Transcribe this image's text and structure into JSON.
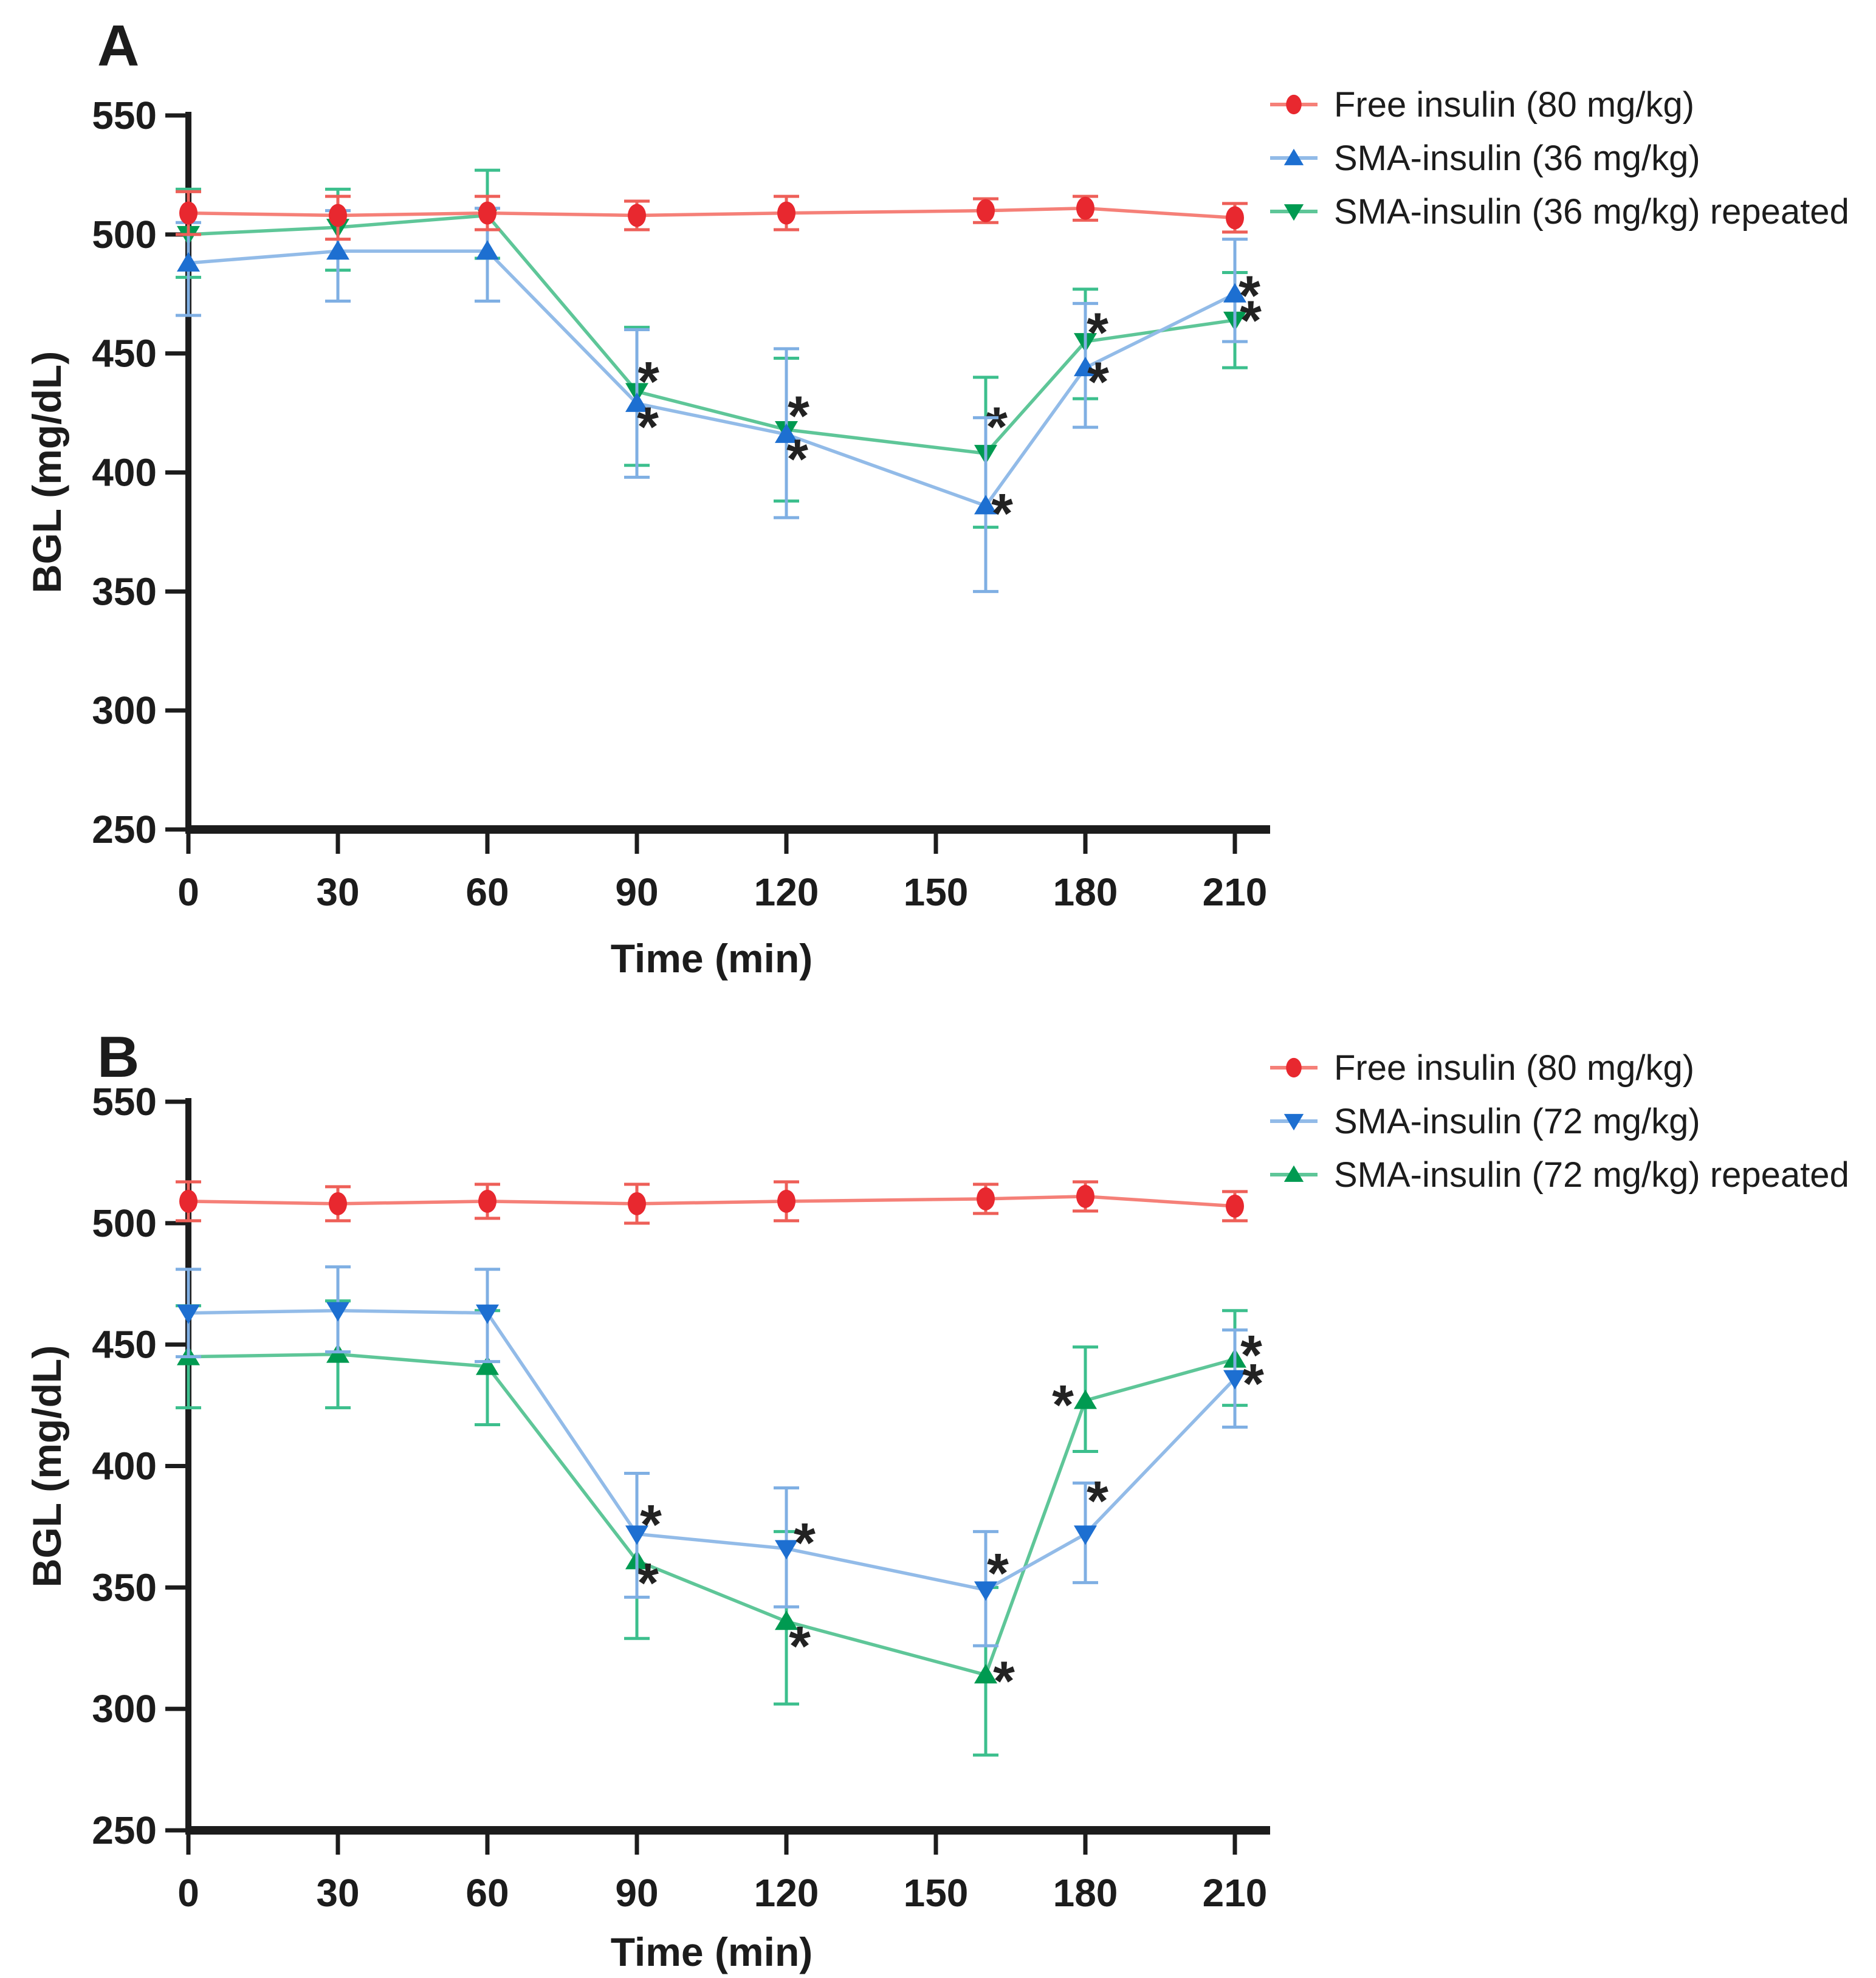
{
  "figure": {
    "background": "#ffffff",
    "axis_color": "#1c1c1c",
    "sig_symbol": "*"
  },
  "chart_data": [
    {
      "type": "line",
      "panel_label": "A",
      "xlabel": "Time (min)",
      "ylabel": "BGL (mg/dL)",
      "xlim": [
        0,
        218
      ],
      "ylim": [
        250,
        550
      ],
      "x_ticks": [
        0,
        30,
        60,
        90,
        120,
        150,
        180,
        210
      ],
      "y_ticks": [
        550,
        500,
        450,
        400,
        350,
        300,
        250
      ],
      "grid": false,
      "legend_position": "top-right",
      "x": [
        0,
        30,
        60,
        90,
        120,
        160,
        180,
        210
      ],
      "series": [
        {
          "name": "Free insulin (80 mg/kg)",
          "marker": "circle",
          "marker_color": "#e8282f",
          "line_color": "#f58078",
          "error_color": "#ee5f58",
          "values": [
            509,
            508,
            509,
            508,
            509,
            510,
            511,
            507
          ],
          "err_up": [
            9,
            8,
            7,
            6,
            7,
            5,
            5,
            6
          ],
          "err_dn": [
            9,
            10,
            7,
            6,
            7,
            5,
            5,
            6
          ],
          "sig": []
        },
        {
          "name": "SMA-insulin (36 mg/kg)",
          "marker": "triangle-up",
          "marker_color": "#1d6fd1",
          "line_color": "#92bbe8",
          "error_color": "#7fafe3",
          "values": [
            488,
            493,
            493,
            429,
            416,
            386,
            444,
            475
          ],
          "err_up": [
            17,
            17,
            18,
            31,
            36,
            37,
            27,
            23
          ],
          "err_dn": [
            22,
            21,
            21,
            31,
            35,
            36,
            25,
            20
          ],
          "sig": [
            {
              "t": 90,
              "dx": 18,
              "dy": 28
            },
            {
              "t": 120,
              "dx": 18,
              "dy": 30
            },
            {
              "t": 160,
              "dx": 27,
              "dy": 2
            },
            {
              "t": 180,
              "dx": 21,
              "dy": 13
            },
            {
              "t": 210,
              "dx": 24,
              "dy": -8
            }
          ]
        },
        {
          "name": "SMA-insulin (36 mg/kg) repeated",
          "marker": "triangle-down",
          "marker_color": "#009a51",
          "line_color": "#5ec698",
          "error_color": "#3cbf8d",
          "values": [
            500,
            503,
            508,
            434,
            418,
            408,
            455,
            464
          ],
          "err_up": [
            19,
            16,
            19,
            27,
            30,
            32,
            22,
            20
          ],
          "err_dn": [
            18,
            18,
            18,
            31,
            30,
            31,
            24,
            20
          ],
          "sig": [
            {
              "t": 90,
              "dx": 19,
              "dy": -27
            },
            {
              "t": 120,
              "dx": 20,
              "dy": -33
            },
            {
              "t": 160,
              "dx": 18,
              "dy": -54
            },
            {
              "t": 180,
              "dx": 20,
              "dy": -25
            },
            {
              "t": 210,
              "dx": 26,
              "dy": -10
            }
          ]
        }
      ]
    },
    {
      "type": "line",
      "panel_label": "B",
      "xlabel": "Time (min)",
      "ylabel": "BGL (mg/dL)",
      "xlim": [
        0,
        218
      ],
      "ylim": [
        250,
        550
      ],
      "x_ticks": [
        0,
        30,
        60,
        90,
        120,
        150,
        180,
        210
      ],
      "y_ticks": [
        550,
        500,
        450,
        400,
        350,
        300,
        250
      ],
      "grid": false,
      "legend_position": "top-right",
      "x": [
        0,
        30,
        60,
        90,
        120,
        160,
        180,
        210
      ],
      "series": [
        {
          "name": "Free insulin (80 mg/kg)",
          "marker": "circle",
          "marker_color": "#e8282f",
          "line_color": "#f58078",
          "error_color": "#ee5f58",
          "values": [
            509,
            508,
            509,
            508,
            509,
            510,
            511,
            507
          ],
          "err_up": [
            8,
            7,
            7,
            8,
            8,
            6,
            6,
            6
          ],
          "err_dn": [
            8,
            7,
            7,
            8,
            8,
            6,
            6,
            6
          ],
          "sig": []
        },
        {
          "name": "SMA-insulin (72 mg/kg)",
          "marker": "triangle-down",
          "marker_color": "#1d6fd1",
          "line_color": "#92bbe8",
          "error_color": "#7fafe3",
          "values": [
            463,
            464,
            463,
            372,
            366,
            349,
            372,
            436
          ],
          "err_up": [
            18,
            18,
            18,
            25,
            25,
            24,
            21,
            20
          ],
          "err_dn": [
            18,
            17,
            20,
            26,
            24,
            23,
            20,
            20
          ],
          "sig": [
            {
              "t": 90,
              "dx": 23,
              "dy": -26
            },
            {
              "t": 120,
              "dx": 30,
              "dy": -20
            },
            {
              "t": 160,
              "dx": 20,
              "dy": -38
            },
            {
              "t": 180,
              "dx": 20,
              "dy": -65
            },
            {
              "t": 210,
              "dx": 30,
              "dy": -2
            }
          ]
        },
        {
          "name": "SMA-insulin (72 mg/kg) repeated",
          "marker": "triangle-up",
          "marker_color": "#009a51",
          "line_color": "#5ec698",
          "error_color": "#3cbf8d",
          "values": [
            445,
            446,
            441,
            361,
            336,
            314,
            427,
            444
          ],
          "err_up": [
            21,
            22,
            23,
            36,
            37,
            36,
            22,
            20
          ],
          "err_dn": [
            21,
            22,
            24,
            32,
            34,
            33,
            21,
            19
          ],
          "sig": [
            {
              "t": 90,
              "dx": 18,
              "dy": 26
            },
            {
              "t": 120,
              "dx": 22,
              "dy": 30
            },
            {
              "t": 160,
              "dx": 30,
              "dy": 0
            },
            {
              "t": 180,
              "dx": -37,
              "dy": -3
            },
            {
              "t": 210,
              "dx": 27,
              "dy": -17
            }
          ]
        }
      ]
    }
  ]
}
